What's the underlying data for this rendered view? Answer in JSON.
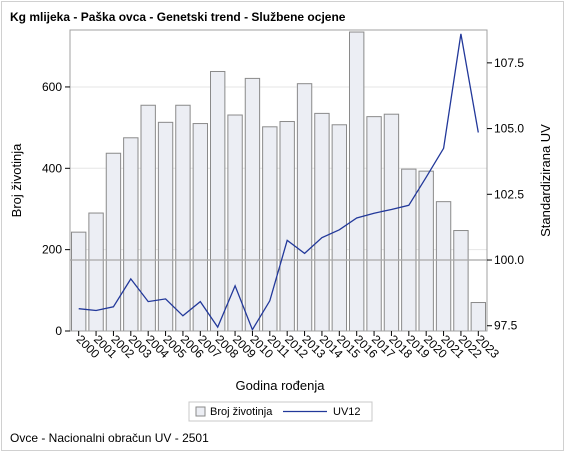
{
  "footnote": "Ovce - Nacionalni obračun UV - 2501",
  "chart_data": {
    "type": "bar",
    "title": "Kg mlijeka - Paška ovca - Genetski trend - Službene ocjene",
    "xlabel": "Godina rođenja",
    "ylabel": "Broj životinja",
    "y2label": "Standardizirana UV",
    "categories": [
      "2000",
      "2001",
      "2002",
      "2003",
      "2004",
      "2005",
      "2006",
      "2007",
      "2008",
      "2009",
      "2010",
      "2011",
      "2012",
      "2013",
      "2014",
      "2015",
      "2016",
      "2017",
      "2018",
      "2019",
      "2020",
      "2021",
      "2022",
      "2023"
    ],
    "series": [
      {
        "name": "Broj životinja",
        "kind": "bar",
        "axis": "left",
        "values": [
          243,
          290,
          437,
          475,
          555,
          513,
          555,
          510,
          638,
          531,
          621,
          502,
          515,
          608,
          535,
          507,
          735,
          527,
          533,
          398,
          393,
          318,
          247,
          70
        ]
      },
      {
        "name": "UV12",
        "kind": "line",
        "axis": "right",
        "values": [
          98.15,
          98.08,
          98.22,
          99.28,
          98.42,
          98.52,
          97.88,
          98.42,
          97.45,
          99.02,
          97.35,
          98.45,
          100.75,
          100.25,
          100.85,
          101.15,
          101.6,
          101.78,
          101.92,
          102.08,
          103.15,
          104.25,
          108.6,
          104.85
        ]
      }
    ],
    "ylim": [
      0,
      740
    ],
    "yticks": [
      0,
      200,
      400,
      600
    ],
    "y2lim": [
      97.3,
      108.75
    ],
    "y2ticks": [
      "97.5",
      "100.0",
      "102.5",
      "105.0",
      "107.5"
    ],
    "reference_line": 100.0,
    "grid": true,
    "legend_position": "bottom",
    "colors": {
      "bar_fill": "#eceef4",
      "bar_stroke": "#8a8a8a",
      "line": "#22389a",
      "grid": "#e6e6e6",
      "axis": "#a0a0a0",
      "reference": "#a8a8a8"
    }
  }
}
